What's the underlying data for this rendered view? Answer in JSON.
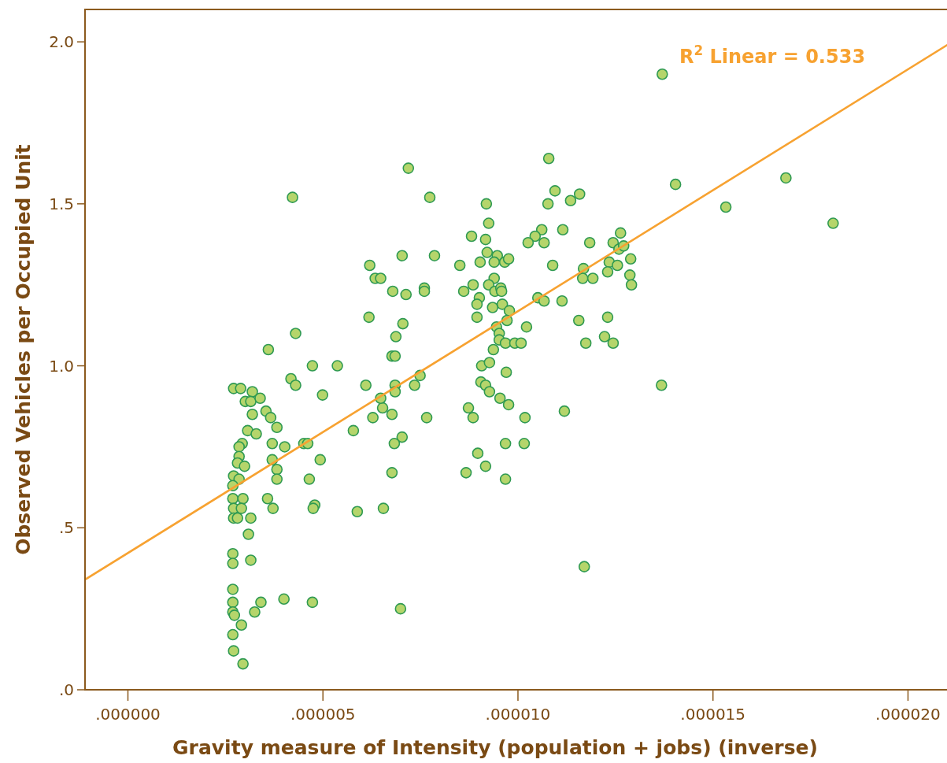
{
  "chart_data": {
    "type": "scatter",
    "xlabel": "Gravity measure of Intensity (population + jobs) (inverse)",
    "ylabel": "Observed Vehicles per Occupied Unit",
    "xlim": [
      -1.1e-06,
      2.1e-05
    ],
    "ylim": [
      0,
      2.1
    ],
    "xticks": [
      {
        "value": 0,
        "label": ".000000"
      },
      {
        "value": 5e-06,
        "label": ".000005"
      },
      {
        "value": 1e-05,
        "label": ".000010"
      },
      {
        "value": 1.5e-05,
        "label": ".000015"
      },
      {
        "value": 2e-05,
        "label": ".000020"
      }
    ],
    "yticks": [
      {
        "value": 0,
        "label": ".0"
      },
      {
        "value": 0.5,
        "label": ".5"
      },
      {
        "value": 1,
        "label": "1.0"
      },
      {
        "value": 1.5,
        "label": "1.5"
      },
      {
        "value": 2,
        "label": "2.0"
      }
    ],
    "annotations": [
      "R$^{2}$ Linear = 0.533"
    ],
    "series": [
      {
        "marker": "circle",
        "color": "#b5d56b",
        "x": [
          2.71e-06,
          2.89e-06,
          3.01e-06,
          3.19e-06,
          3.15e-06,
          3.39e-06,
          3.19e-06,
          3.54e-06,
          3.66e-06,
          3.82e-06,
          3.07e-06,
          3.29e-06,
          3.7e-06,
          4.02e-06,
          4.51e-06,
          4.61e-06,
          2.93e-06,
          2.85e-06,
          2.85e-06,
          2.81e-06,
          2.99e-06,
          3.7e-06,
          3.82e-06,
          3.82e-06,
          4.65e-06,
          4.93e-06,
          5.78e-06,
          6.1e-06,
          4.99e-06,
          4.18e-06,
          4.3e-06,
          6.28e-06,
          6.53e-06,
          6.48e-06,
          6.77e-06,
          6.85e-06,
          6.85e-06,
          7.35e-06,
          7.66e-06,
          7.03e-06,
          6.83e-06,
          6.77e-06,
          6.55e-06,
          5.88e-06,
          4.79e-06,
          4.75e-06,
          3.72e-06,
          3.58e-06,
          2.71e-06,
          2.85e-06,
          2.69e-06,
          2.69e-06,
          2.95e-06,
          2.71e-06,
          2.91e-06,
          2.71e-06,
          2.81e-06,
          3.15e-06,
          3.09e-06,
          2.69e-06,
          2.69e-06,
          3.15e-06,
          2.69e-06,
          2.69e-06,
          2.69e-06,
          2.73e-06,
          2.91e-06,
          3.25e-06,
          3.41e-06,
          4e-06,
          4.73e-06,
          6.99e-06,
          2.69e-06,
          2.71e-06,
          2.95e-06,
          3.6e-06,
          4.3e-06,
          4.73e-06,
          5.37e-06,
          4.22e-06,
          6.2e-06,
          6.34e-06,
          6.48e-06,
          6.18e-06,
          7.19e-06,
          7.03e-06,
          7.74e-06,
          7.86e-06,
          7.13e-06,
          6.79e-06,
          7.05e-06,
          7.6e-06,
          7.6e-06,
          6.87e-06,
          6.77e-06,
          6.85e-06,
          7.49e-06,
          1.079e-05,
          1.404e-05,
          1.095e-05,
          1.158e-05,
          1.135e-05,
          1.077e-05,
          9.19e-06,
          9.25e-06,
          1.061e-05,
          1.044e-05,
          1.115e-05,
          1.026e-05,
          1.067e-05,
          1.184e-05,
          1.263e-05,
          1.244e-05,
          1.259e-05,
          1.271e-05,
          8.81e-06,
          9.17e-06,
          8.51e-06,
          9.21e-06,
          9.03e-06,
          9.47e-06,
          9.39e-06,
          9.66e-06,
          9.76e-06,
          1.089e-05,
          1.289e-05,
          1.234e-05,
          1.255e-05,
          1.23e-05,
          1.168e-05,
          1.166e-05,
          1.192e-05,
          1.287e-05,
          1.291e-05,
          9.39e-06,
          9.25e-06,
          8.85e-06,
          8.61e-06,
          9.41e-06,
          9.56e-06,
          9.58e-06,
          9.01e-06,
          8.95e-06,
          9.6e-06,
          9.35e-06,
          9.78e-06,
          8.95e-06,
          1.051e-05,
          1.067e-05,
          1.113e-05,
          1.156e-05,
          1.23e-05,
          9.45e-06,
          9.72e-06,
          1.022e-05,
          9.52e-06,
          9.52e-06,
          9.68e-06,
          9.92e-06,
          1.008e-05,
          9.37e-06,
          1.174e-05,
          1.222e-05,
          1.244e-05,
          9.07e-06,
          9.27e-06,
          9.7e-06,
          9.05e-06,
          9.17e-06,
          9.27e-06,
          9.54e-06,
          9.76e-06,
          1.368e-05,
          8.73e-06,
          8.85e-06,
          1.018e-05,
          1.119e-05,
          9.68e-06,
          1.016e-05,
          8.97e-06,
          9.17e-06,
          8.67e-06,
          9.68e-06,
          1.37e-05,
          1.533e-05,
          1.687e-05,
          1.808e-05,
          1.17e-05
        ],
        "values": [
          0.93,
          0.93,
          0.89,
          0.92,
          0.89,
          0.9,
          0.85,
          0.86,
          0.84,
          0.81,
          0.8,
          0.79,
          0.76,
          0.75,
          0.76,
          0.76,
          0.76,
          0.75,
          0.72,
          0.7,
          0.69,
          0.71,
          0.68,
          0.65,
          0.65,
          0.71,
          0.8,
          0.94,
          0.91,
          0.96,
          0.94,
          0.84,
          0.87,
          0.9,
          0.85,
          0.94,
          0.92,
          0.94,
          0.84,
          0.78,
          0.76,
          0.67,
          0.56,
          0.55,
          0.57,
          0.56,
          0.56,
          0.59,
          0.66,
          0.65,
          0.63,
          0.59,
          0.59,
          0.56,
          0.56,
          0.53,
          0.53,
          0.53,
          0.48,
          0.42,
          0.39,
          0.4,
          0.31,
          0.27,
          0.24,
          0.23,
          0.2,
          0.24,
          0.27,
          0.28,
          0.27,
          0.25,
          0.17,
          0.12,
          0.08,
          1.05,
          1.1,
          1.0,
          1.0,
          1.52,
          1.31,
          1.27,
          1.27,
          1.15,
          1.61,
          1.34,
          1.52,
          1.34,
          1.22,
          1.23,
          1.13,
          1.24,
          1.23,
          1.09,
          1.03,
          1.03,
          0.97,
          1.64,
          1.56,
          1.54,
          1.53,
          1.51,
          1.5,
          1.5,
          1.44,
          1.42,
          1.4,
          1.42,
          1.38,
          1.38,
          1.38,
          1.41,
          1.38,
          1.36,
          1.37,
          1.4,
          1.39,
          1.31,
          1.35,
          1.32,
          1.34,
          1.32,
          1.32,
          1.33,
          1.31,
          1.33,
          1.32,
          1.31,
          1.29,
          1.3,
          1.27,
          1.27,
          1.28,
          1.25,
          1.27,
          1.25,
          1.25,
          1.23,
          1.23,
          1.24,
          1.23,
          1.21,
          1.19,
          1.19,
          1.18,
          1.17,
          1.15,
          1.21,
          1.2,
          1.2,
          1.14,
          1.15,
          1.12,
          1.14,
          1.12,
          1.1,
          1.08,
          1.07,
          1.07,
          1.07,
          1.05,
          1.07,
          1.09,
          1.07,
          1.0,
          1.01,
          0.98,
          0.95,
          0.94,
          0.92,
          0.9,
          0.88,
          0.94,
          0.87,
          0.84,
          0.84,
          0.86,
          0.76,
          0.76,
          0.73,
          0.69,
          0.67,
          0.65,
          1.9,
          1.49,
          1.58,
          1.44,
          0.38
        ]
      },
      {
        "type": "line",
        "color": "#f7a231",
        "x": [
          -1.1e-06,
          2.1e-05
        ],
        "values": [
          0.34,
          1.99
        ]
      }
    ]
  }
}
